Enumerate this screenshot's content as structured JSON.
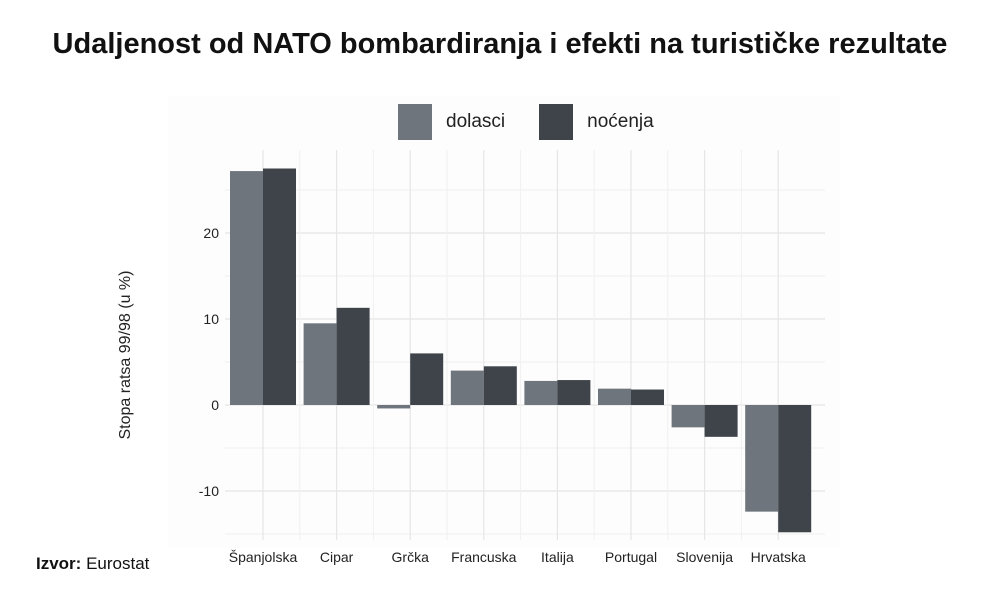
{
  "title": "Udaljenost od NATO bombardiranja i efekti na turističke rezultate",
  "source": {
    "label": "Izvor:",
    "text": "Eurostat"
  },
  "colors": {
    "dolasci": "#6e757c",
    "nocenja": "#3e4449"
  },
  "chart_data": {
    "type": "bar",
    "title": "Udaljenost od NATO bombardiranja i efekti na turističke rezultate",
    "xlabel": "",
    "ylabel": "Stopa ratsa 99/98 (u %)",
    "categories": [
      "Španjolska",
      "Cipar",
      "Grčka",
      "Francuska",
      "Italija",
      "Portugal",
      "Slovenija",
      "Hrvatska"
    ],
    "series": [
      {
        "name": "dolasci",
        "values": [
          27.2,
          9.5,
          -0.4,
          4.0,
          2.8,
          1.9,
          -2.6,
          -12.4
        ]
      },
      {
        "name": "noćenja",
        "values": [
          27.5,
          11.3,
          6.0,
          4.5,
          2.9,
          1.8,
          -3.7,
          -14.8
        ]
      }
    ],
    "yticks": [
      -10,
      0,
      10,
      20
    ],
    "ytick_labels": [
      "-10",
      "0",
      "10",
      "20"
    ],
    "ylim": [
      -15.5,
      29.5
    ],
    "grid": true,
    "legend": "top"
  }
}
